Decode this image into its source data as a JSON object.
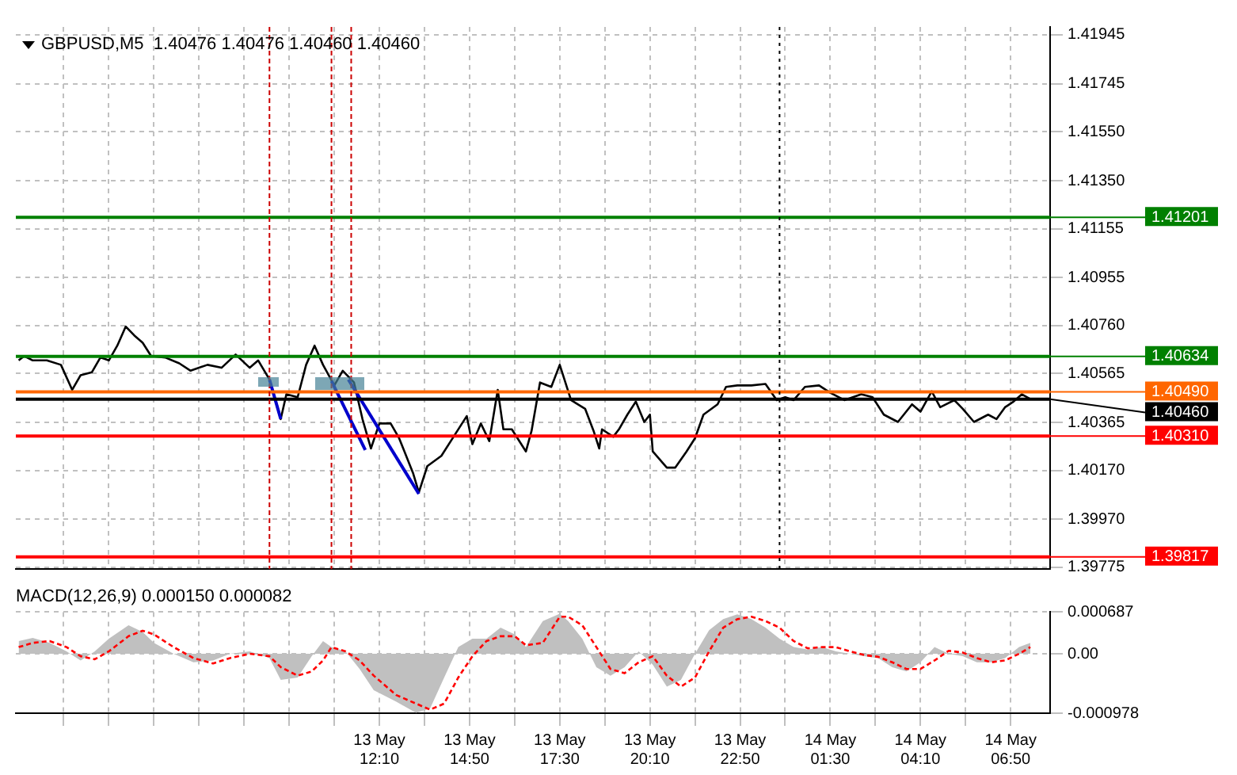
{
  "chart_data": [
    {
      "type": "line",
      "title": "GBPUSD,M5  1.40476 1.40476 1.40460 1.40460",
      "marker": "none",
      "grid": true,
      "tick_labels": "y",
      "xlim": [
        "--05-13T01:25",
        "--05-14T08:00"
      ],
      "xticks": [
        {
          "value": "--05-13T02:50",
          "label": null
        },
        {
          "value": "--05-13T04:10",
          "label": null
        },
        {
          "value": "--05-13T05:30",
          "label": null
        },
        {
          "value": "--05-13T06:50",
          "label": null
        },
        {
          "value": "--05-13T08:10",
          "label": null
        },
        {
          "value": "--05-13T09:30",
          "label": null
        },
        {
          "value": "--05-13T10:50",
          "label": null
        },
        {
          "value": "--05-13T12:10",
          "label": null
        },
        {
          "value": "--05-13T13:30",
          "label": null
        },
        {
          "value": "--05-13T14:50",
          "label": null
        },
        {
          "value": "--05-13T16:10",
          "label": null
        },
        {
          "value": "--05-13T17:30",
          "label": null
        },
        {
          "value": "--05-13T18:50",
          "label": null
        },
        {
          "value": "--05-13T20:10",
          "label": null
        },
        {
          "value": "--05-13T21:30",
          "label": null
        },
        {
          "value": "--05-13T22:50",
          "label": null
        },
        {
          "value": "--05-14T00:10",
          "label": null
        },
        {
          "value": "--05-14T01:30",
          "label": null
        },
        {
          "value": "--05-14T02:50",
          "label": null
        },
        {
          "value": "--05-14T04:10",
          "label": null
        },
        {
          "value": "--05-14T05:30",
          "label": null
        },
        {
          "value": "--05-14T06:50",
          "label": null
        }
      ],
      "ylim": [
        1.39768,
        1.41977
      ],
      "yticks": [
        1.41945,
        1.41745,
        {
          "value": 1.4155,
          "label": "1.41550"
        },
        {
          "value": 1.4135,
          "label": "1.41350"
        },
        1.41155,
        1.40955,
        {
          "value": 1.4076,
          "label": "1.40760"
        },
        1.40565,
        1.40365,
        {
          "value": 1.4017,
          "label": "1.40170"
        },
        {
          "value": 1.3997,
          "label": "1.39970"
        },
        1.39775
      ],
      "series": [
        {
          "color": "#000000",
          "x": [
            "--05-13T01:30",
            "--05-13T01:40",
            "--05-13T01:55",
            "--05-13T02:20",
            "--05-13T02:45",
            "--05-13T03:05",
            "--05-13T03:20",
            "--05-13T03:40",
            "--05-13T03:55",
            "--05-13T04:10",
            "--05-13T04:25",
            "--05-13T04:40",
            "--05-13T04:55",
            "--05-13T05:10",
            "--05-13T05:25",
            "--05-13T05:50",
            "--05-13T06:15",
            "--05-13T06:35",
            "--05-13T07:05",
            "--05-13T07:30",
            "--05-13T07:55",
            "--05-13T08:20",
            "--05-13T08:35",
            "--05-13T08:55",
            "--05-13T09:15",
            "--05-13T09:25",
            "--05-13T09:45",
            "--05-13T10:00",
            "--05-13T10:15",
            "--05-13T10:30",
            "--05-13T10:50",
            "--05-13T11:05",
            "--05-13T11:25",
            "--05-13T11:40",
            "--05-13T11:55",
            "--05-13T12:10",
            "--05-13T12:30",
            "--05-13T12:45",
            "--05-13T13:10",
            "--05-13T13:20",
            "--05-13T13:35",
            "--05-13T14:00",
            "--05-13T14:25",
            "--05-13T14:45",
            "--05-13T14:55",
            "--05-13T15:10",
            "--05-13T15:25",
            "--05-13T15:40",
            "--05-13T15:50",
            "--05-13T16:05",
            "--05-13T16:30",
            "--05-13T16:40",
            "--05-13T16:55",
            "--05-13T17:15",
            "--05-13T17:30",
            "--05-13T17:50",
            "--05-13T18:15",
            "--05-13T18:30",
            "--05-13T18:40",
            "--05-13T18:45",
            "--05-13T19:05",
            "--05-13T19:15",
            "--05-13T19:30",
            "--05-13T19:45",
            "--05-13T20:00",
            "--05-13T20:10",
            "--05-13T20:15",
            "--05-13T20:40",
            "--05-13T20:55",
            "--05-13T21:15",
            "--05-13T21:30",
            "--05-13T21:45",
            "--05-13T22:10",
            "--05-13T22:25",
            "--05-13T22:45",
            "--05-13T23:10",
            "--05-13T23:35",
            "--05-13T23:55",
            "--05-14T00:10",
            "--05-14T00:25",
            "--05-14T00:45",
            "--05-14T01:10",
            "--05-14T01:30",
            "--05-14T01:55",
            "--05-14T02:25",
            "--05-14T02:45",
            "--05-14T03:05",
            "--05-14T03:30",
            "--05-14T03:55",
            "--05-14T04:10",
            "--05-14T04:30",
            "--05-14T04:45",
            "--05-14T05:10",
            "--05-14T05:25",
            "--05-14T05:45",
            "--05-14T06:10",
            "--05-14T06:25",
            "--05-14T06:40",
            "--05-14T06:55",
            "--05-14T07:10",
            "--05-14T07:25"
          ],
          "values": [
            1.40618,
            1.40636,
            1.40618,
            1.40618,
            1.406,
            1.40498,
            1.40558,
            1.4057,
            1.4063,
            1.40618,
            1.40678,
            1.40756,
            1.4072,
            1.4069,
            1.40636,
            1.4063,
            1.40606,
            1.40576,
            1.406,
            1.40588,
            1.40642,
            1.40588,
            1.40618,
            1.4054,
            1.40379,
            1.4048,
            1.40468,
            1.406,
            1.40678,
            1.406,
            1.40516,
            1.40576,
            1.40528,
            1.40379,
            1.40259,
            1.40361,
            1.40361,
            1.40301,
            1.40157,
            1.4008,
            1.40187,
            1.40229,
            1.40319,
            1.40391,
            1.40277,
            1.40361,
            1.40289,
            1.40498,
            1.40337,
            1.40337,
            1.40247,
            1.40331,
            1.40528,
            1.4051,
            1.406,
            1.40456,
            1.40421,
            1.40331,
            1.40259,
            1.40337,
            1.40307,
            1.40337,
            1.40397,
            1.4045,
            1.40367,
            1.40397,
            1.40247,
            1.40181,
            1.40181,
            1.40247,
            1.40301,
            1.40397,
            1.40439,
            1.4051,
            1.40516,
            1.40516,
            1.40522,
            1.40456,
            1.40468,
            1.40456,
            1.4051,
            1.40516,
            1.40486,
            1.40456,
            1.4048,
            1.40468,
            1.40397,
            1.40367,
            1.40439,
            1.40409,
            1.40492,
            1.40427,
            1.40456,
            1.40421,
            1.40367,
            1.40397,
            1.40379,
            1.40427,
            1.4045,
            1.4048,
            1.4046
          ]
        },
        {
          "color": "#0000cc",
          "x": [
            "--05-13T08:55",
            "--05-13T09:15"
          ],
          "values": [
            1.4054,
            1.40379
          ]
        },
        {
          "color": "#0000cc",
          "x": [
            "--05-13T10:45",
            "--05-13T11:45"
          ],
          "values": [
            1.40534,
            1.40253
          ]
        },
        {
          "color": "#0000cc",
          "x": [
            "--05-13T11:15",
            "--05-13T13:20"
          ],
          "values": [
            1.4054,
            1.40074
          ]
        }
      ],
      "ref_lines": [
        {
          "axis": "y",
          "value": 1.41201,
          "label": "1.41201",
          "color": "#008000",
          "line_style": "solid"
        },
        {
          "axis": "y",
          "value": 1.40634,
          "label": "1.40634",
          "color": "#008000",
          "line_style": "solid"
        },
        {
          "axis": "y",
          "value": 1.4049,
          "label": "1.40490",
          "color": "#ff6600",
          "line_style": "solid"
        },
        {
          "axis": "y",
          "value": 1.4046,
          "label": "1.40460",
          "color": "#000000",
          "line_style": "solid"
        },
        {
          "axis": "y",
          "value": 1.4031,
          "label": "1.40310",
          "color": "#ff0000",
          "line_style": "solid"
        },
        {
          "axis": "y",
          "value": 1.39817,
          "label": "1.39817",
          "color": "#ff0000",
          "line_style": "solid"
        },
        {
          "axis": "x",
          "value": "--05-13T08:55",
          "color": "#cc0000",
          "line_style": "dashed"
        },
        {
          "axis": "x",
          "value": "--05-13T10:45",
          "color": "#cc0000",
          "line_style": "dashed"
        },
        {
          "axis": "x",
          "value": "--05-13T11:20",
          "color": "#cc0000",
          "line_style": "dashed"
        },
        {
          "axis": "x",
          "value": "--05-14T00:00",
          "color": "#000000",
          "line_style": "dotted"
        }
      ]
    },
    {
      "type": "area",
      "title": "MACD(12,26,9) 0.000150 0.000082",
      "marker": "none",
      "grid": true,
      "xlim": [
        "--05-13T01:25",
        "--05-14T08:00"
      ],
      "xticks": [
        {
          "value": "--05-13T02:50",
          "label": null
        },
        {
          "value": "--05-13T04:10",
          "label": null
        },
        {
          "value": "--05-13T05:30",
          "label": null
        },
        {
          "value": "--05-13T06:50",
          "label": null
        },
        {
          "value": "--05-13T08:10",
          "label": null
        },
        {
          "value": "--05-13T09:30",
          "label": null
        },
        {
          "value": "--05-13T10:50",
          "label": null
        },
        {
          "value": "--05-13T12:10",
          "label": "13 May 12:10"
        },
        {
          "value": "--05-13T13:30",
          "label": null
        },
        {
          "value": "--05-13T14:50",
          "label": "13 May 14:50"
        },
        {
          "value": "--05-13T16:10",
          "label": null
        },
        {
          "value": "--05-13T17:30",
          "label": "13 May 17:30"
        },
        {
          "value": "--05-13T18:50",
          "label": null
        },
        {
          "value": "--05-13T20:10",
          "label": "13 May 20:10"
        },
        {
          "value": "--05-13T21:30",
          "label": null
        },
        {
          "value": "--05-13T22:50",
          "label": "13 May 22:50"
        },
        {
          "value": "--05-14T00:10",
          "label": null
        },
        {
          "value": "--05-14T01:30",
          "label": "14 May 01:30"
        },
        {
          "value": "--05-14T02:50",
          "label": null
        },
        {
          "value": "--05-14T04:10",
          "label": "14 May 04:10"
        },
        {
          "value": "--05-14T05:30",
          "label": null
        },
        {
          "value": "--05-14T06:50",
          "label": "14 May 06:50"
        }
      ],
      "ylim": [
        -0.000978,
        0.000687
      ],
      "yticks": [
        0.000687,
        {
          "value": 0,
          "label": "0.00"
        },
        -0.000978
      ],
      "x": [
        "--05-13T01:30",
        "--05-13T01:55",
        "--05-13T02:25",
        "--05-13T02:55",
        "--05-13T03:20",
        "--05-13T03:45",
        "--05-13T04:10",
        "--05-13T04:45",
        "--05-13T05:10",
        "--05-13T05:30",
        "--05-13T06:05",
        "--05-13T06:40",
        "--05-13T07:15",
        "--05-13T07:45",
        "--05-13T08:20",
        "--05-13T08:55",
        "--05-13T09:15",
        "--05-13T09:45",
        "--05-13T10:10",
        "--05-13T10:30",
        "--05-13T10:45",
        "--05-13T11:10",
        "--05-13T11:35",
        "--05-13T12:00",
        "--05-13T12:40",
        "--05-13T13:15",
        "--05-13T13:40",
        "--05-13T14:05",
        "--05-13T14:30",
        "--05-13T14:55",
        "--05-13T15:20",
        "--05-13T15:45",
        "--05-13T16:10",
        "--05-13T16:30",
        "--05-13T17:00",
        "--05-13T17:30",
        "--05-13T17:45",
        "--05-13T18:10",
        "--05-13T18:35",
        "--05-13T19:00",
        "--05-13T19:25",
        "--05-13T19:50",
        "--05-13T20:15",
        "--05-13T20:40",
        "--05-13T21:05",
        "--05-13T21:30",
        "--05-13T21:55",
        "--05-13T22:20",
        "--05-13T22:45",
        "--05-13T23:10",
        "--05-13T23:35",
        "--05-14T00:00",
        "--05-14T00:25",
        "--05-14T00:50",
        "--05-14T01:15",
        "--05-14T01:40",
        "--05-14T02:05",
        "--05-14T02:30",
        "--05-14T02:55",
        "--05-14T03:20",
        "--05-14T03:45",
        "--05-14T04:10",
        "--05-14T04:35",
        "--05-14T05:00",
        "--05-14T05:25",
        "--05-14T05:50",
        "--05-14T06:15",
        "--05-14T06:40",
        "--05-14T07:05",
        "--05-14T07:25"
      ],
      "series": [
        {
          "color": "#c0c0c0",
          "values": [
            0.00021,
            0.00026,
            0.00018,
            4e-05,
            -0.00011,
            4e-05,
            0.00025,
            0.00047,
            0.00036,
            0.00018,
            0,
            -0.00014,
            -0.00011,
            0,
            4e-05,
            -7e-05,
            -0.00043,
            -0.00039,
            -4e-05,
            0.00021,
            0.00011,
            4e-05,
            -0.00025,
            -0.0006,
            -0.00079,
            -0.00097,
            -0.0009,
            -0.00039,
            0.00011,
            0.00025,
            0.00025,
            0.00043,
            0.00032,
            0.00011,
            0.00054,
            0.00066,
            0.00054,
            0.00025,
            -0.00022,
            -0.00036,
            -0.00022,
            4e-05,
            -0.00018,
            -0.00054,
            -0.00043,
            0,
            0.00039,
            0.00057,
            0.00065,
            0.00057,
            0.00043,
            0.00025,
            0.00011,
            7e-05,
            0.00011,
            4e-05,
            0,
            -4e-05,
            -7e-05,
            -0.00022,
            -0.00029,
            -0.00014,
            0.00011,
            0,
            -4e-05,
            -0.00014,
            -0.00014,
            -7e-05,
            0.00011,
            0.00018
          ]
        },
        {
          "type": "line",
          "color": "#ff0000",
          "line_style": "dashed",
          "values": [
            0.00011,
            0.00018,
            0.00021,
            0.00011,
            -4e-05,
            -9e-05,
            4e-05,
            0.00029,
            0.00038,
            0.00032,
            0.00011,
            -7e-05,
            -0.00016,
            -7e-05,
            0,
            -4e-05,
            -0.00022,
            -0.00036,
            -0.00029,
            -0.00011,
            0.00011,
            4e-05,
            -0.00011,
            -0.00036,
            -0.00068,
            -0.00082,
            -0.00092,
            -0.00082,
            -0.00039,
            -4e-05,
            0.00021,
            0.00029,
            0.00029,
            0.00014,
            0.00018,
            0.00061,
            0.00061,
            0.00047,
            0.00011,
            -0.00025,
            -0.00032,
            -0.00014,
            -4e-05,
            -0.00036,
            -0.00054,
            -0.00039,
            4e-05,
            0.00043,
            0.00057,
            0.00061,
            0.00054,
            0.00043,
            0.00021,
            9e-05,
            0.00011,
            0.00011,
            4e-05,
            -2e-05,
            -5e-05,
            -0.00014,
            -0.00025,
            -0.00025,
            -0.00011,
            5e-05,
            2e-05,
            -7e-05,
            -0.00014,
            -0.00011,
            0,
            0.00011
          ]
        }
      ]
    }
  ]
}
